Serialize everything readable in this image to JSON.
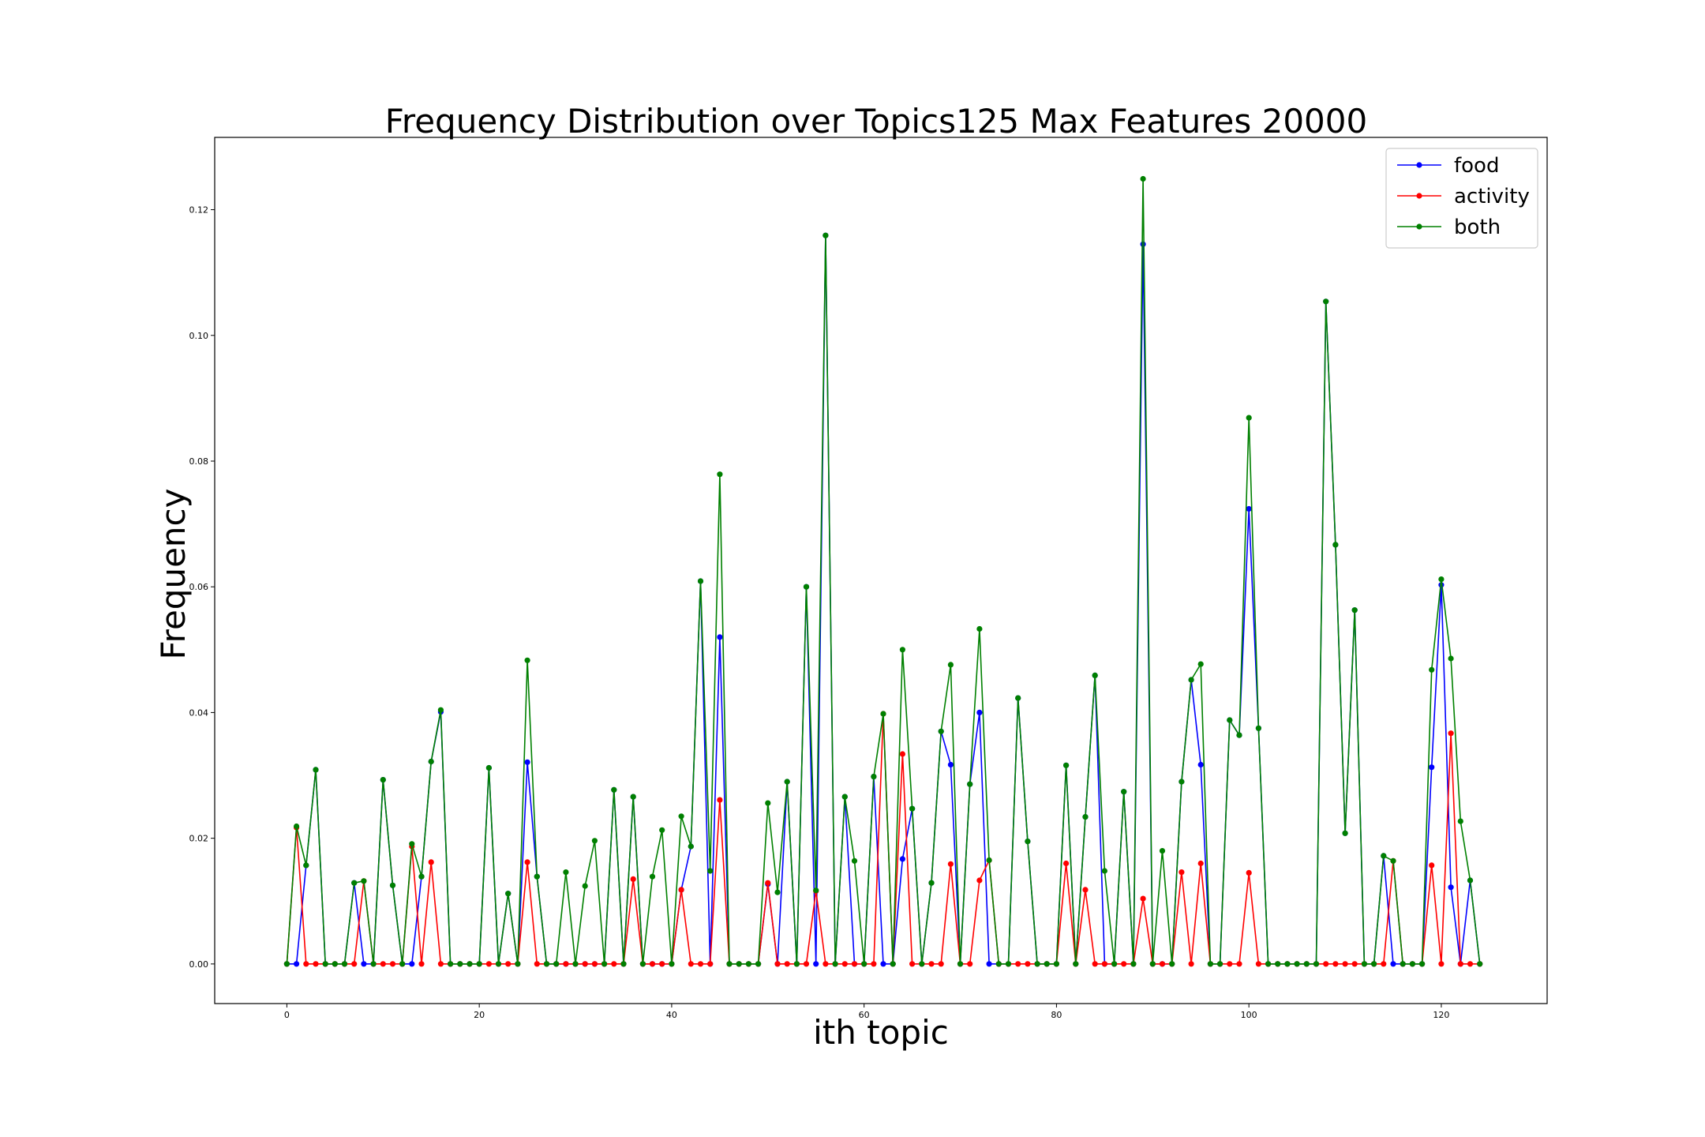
{
  "chart_data": {
    "type": "line",
    "title": "Frequency Distribution over Topics125 Max Features 20000",
    "xlabel": "ith topic",
    "ylabel": "Frequency",
    "xlim": [
      -7.5,
      131.0
    ],
    "ylim": [
      -0.0063,
      0.1315
    ],
    "xticks": [
      0,
      20,
      40,
      60,
      80,
      100,
      120
    ],
    "yticks": [
      0.0,
      0.02,
      0.04,
      0.06,
      0.08,
      0.1,
      0.12
    ],
    "ytick_labels": [
      "0.00",
      "0.02",
      "0.04",
      "0.06",
      "0.08",
      "0.10",
      "0.12"
    ],
    "grid": false,
    "legend_position": "top-right",
    "x": [
      0,
      1,
      2,
      3,
      4,
      5,
      6,
      7,
      8,
      9,
      10,
      11,
      12,
      13,
      14,
      15,
      16,
      17,
      18,
      19,
      20,
      21,
      22,
      23,
      24,
      25,
      26,
      27,
      28,
      29,
      30,
      31,
      32,
      33,
      34,
      35,
      36,
      37,
      38,
      39,
      40,
      41,
      42,
      43,
      44,
      45,
      46,
      47,
      48,
      49,
      50,
      51,
      52,
      53,
      54,
      55,
      56,
      57,
      58,
      59,
      60,
      61,
      62,
      63,
      64,
      65,
      66,
      67,
      68,
      69,
      70,
      71,
      72,
      73,
      74,
      75,
      76,
      77,
      78,
      79,
      80,
      81,
      82,
      83,
      84,
      85,
      86,
      87,
      88,
      89,
      90,
      91,
      92,
      93,
      94,
      95,
      96,
      97,
      98,
      99,
      100,
      101,
      102,
      103,
      104,
      105,
      106,
      107,
      108,
      109,
      110,
      111,
      112,
      113,
      114,
      115,
      116,
      117,
      118,
      119,
      120,
      121,
      122,
      123,
      124
    ],
    "series": [
      {
        "name": "food",
        "color": "#0000ff",
        "values": [
          0,
          0,
          0.0157,
          0.0309,
          0,
          0,
          0,
          0.0129,
          0,
          0,
          0.0293,
          0.0125,
          0,
          0,
          0.0139,
          0.0322,
          0.0401,
          0,
          0,
          0,
          0,
          0.0312,
          0,
          0.0112,
          0,
          0.0321,
          0.0139,
          0,
          0,
          0,
          0,
          0,
          0,
          0,
          0.0277,
          0,
          0.0266,
          0,
          0,
          0,
          0,
          0.0118,
          0.0187,
          0.0609,
          0,
          0.052,
          0,
          0,
          0,
          0,
          0.0127,
          0,
          0.029,
          0,
          0.06,
          0,
          0.1159,
          0,
          0.0266,
          0,
          0,
          0.0298,
          0,
          0,
          0.0167,
          0.0247,
          0,
          0.0129,
          0.037,
          0.0317,
          0,
          0.0286,
          0.04,
          0,
          0,
          0,
          0.0423,
          0.0195,
          0,
          0,
          0,
          0.0316,
          0,
          0.0234,
          0.0459,
          0,
          0,
          0.0274,
          0,
          0.1145,
          0,
          0,
          0,
          0.029,
          0.0452,
          0.0317,
          0,
          0,
          0.0388,
          0.0364,
          0.0724,
          0.0375,
          0,
          0,
          0,
          0,
          0,
          0,
          0.1054,
          0.0667,
          0.0208,
          0.0563,
          0,
          0,
          0.0172,
          0,
          0,
          0,
          0,
          0.0313,
          0.0603,
          0.0122,
          0,
          0.0133,
          0
        ]
      },
      {
        "name": "activity",
        "color": "#ff0000",
        "values": [
          0,
          0.0217,
          0,
          0,
          0,
          0,
          0,
          0,
          0.0132,
          0,
          0,
          0,
          0,
          0.0187,
          0,
          0.0162,
          0,
          0,
          0,
          0,
          0,
          0,
          0,
          0,
          0,
          0.0162,
          0,
          0,
          0,
          0,
          0,
          0,
          0,
          0,
          0,
          0,
          0.0135,
          0,
          0,
          0,
          0,
          0.0118,
          0,
          0,
          0,
          0.0261,
          0,
          0,
          0,
          0,
          0.0129,
          0,
          0,
          0,
          0,
          0.0116,
          0,
          0,
          0,
          0,
          0,
          0,
          0.0398,
          0,
          0.0334,
          0,
          0,
          0,
          0,
          0.0159,
          0,
          0,
          0.0133,
          0.0165,
          0,
          0,
          0,
          0,
          0,
          0,
          0,
          0.016,
          0,
          0.0118,
          0,
          0,
          0,
          0,
          0,
          0.0104,
          0,
          0,
          0,
          0.0146,
          0,
          0.016,
          0,
          0,
          0,
          0,
          0.0145,
          0,
          0,
          0,
          0,
          0,
          0,
          0,
          0,
          0,
          0,
          0,
          0,
          0,
          0,
          0.0164,
          0,
          0,
          0,
          0.0157,
          0,
          0.0367,
          0,
          0,
          0
        ]
      },
      {
        "name": "both",
        "color": "#008000",
        "values": [
          0,
          0.0219,
          0.0157,
          0.0309,
          0,
          0,
          0,
          0.0129,
          0.0132,
          0,
          0.0293,
          0.0125,
          0,
          0.0191,
          0.0139,
          0.0322,
          0.0404,
          0,
          0,
          0,
          0,
          0.0312,
          0,
          0.0112,
          0,
          0.0483,
          0.0139,
          0,
          0,
          0.0146,
          0,
          0.0124,
          0.0196,
          0,
          0.0277,
          0,
          0.0266,
          0,
          0.0139,
          0.0213,
          0,
          0.0235,
          0.0187,
          0.0609,
          0.0148,
          0.0779,
          0,
          0,
          0,
          0,
          0.0256,
          0.0114,
          0.029,
          0,
          0.06,
          0.0117,
          0.1159,
          0,
          0.0266,
          0.0164,
          0,
          0.0298,
          0.0398,
          0,
          0.05,
          0.0247,
          0,
          0.0129,
          0.037,
          0.0476,
          0,
          0.0286,
          0.0533,
          0.0165,
          0,
          0,
          0.0423,
          0.0195,
          0,
          0,
          0,
          0.0316,
          0,
          0.0234,
          0.0459,
          0.0148,
          0,
          0.0274,
          0,
          0.1249,
          0,
          0.018,
          0,
          0.029,
          0.0452,
          0.0477,
          0,
          0,
          0.0388,
          0.0364,
          0.0869,
          0.0375,
          0,
          0,
          0,
          0,
          0,
          0,
          0.1054,
          0.0667,
          0.0208,
          0.0563,
          0,
          0,
          0.0172,
          0.0164,
          0,
          0,
          0,
          0.0468,
          0.0612,
          0.0486,
          0.0227,
          0.0133,
          0
        ]
      }
    ]
  }
}
